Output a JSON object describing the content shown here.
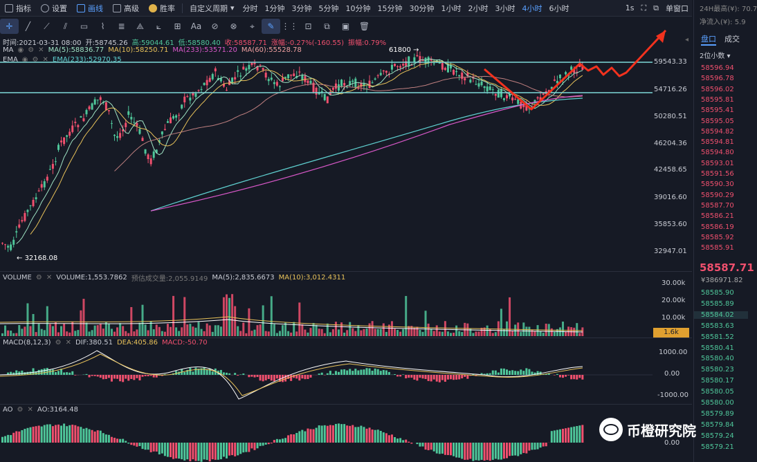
{
  "topbar": {
    "items": [
      {
        "label": "指标",
        "icon": "indicator-icon",
        "active": false
      },
      {
        "label": "设置",
        "icon": "settings-icon",
        "active": false
      },
      {
        "label": "画线",
        "icon": "draw-line-icon",
        "active": true
      },
      {
        "label": "高级",
        "icon": "advanced-icon",
        "active": false
      },
      {
        "label": "胜率",
        "icon": "win-rate-icon",
        "active": false
      }
    ],
    "custom_period": "自定义周期",
    "periods": [
      "分时",
      "1分钟",
      "3分钟",
      "5分钟",
      "10分钟",
      "15分钟",
      "30分钟",
      "1小时",
      "2小时",
      "3小时",
      "4小时",
      "6小时"
    ],
    "active_period": "4小时",
    "speed": "1s",
    "single_window": "单窗口"
  },
  "ohlc": {
    "time": "时间:2021-03-31 08:00",
    "open": "开:58745.26",
    "high": "高:59044.61",
    "low": "低:58580.40",
    "close": "收:58587.71",
    "change": "涨幅:-0.27%(-160.55)",
    "amplitude": "振幅:0.79%"
  },
  "ma_legend": {
    "name": "MA",
    "ma5": "MA(5):58836.77",
    "ma10": "MA(10):58250.71",
    "ma233": "MA(233):53571.20",
    "ma60": "MA(60):55528.78"
  },
  "ema_legend": {
    "name": "EMA",
    "ema233": "EMA(233):52970.35"
  },
  "price_labels": [
    "59543.33",
    "54716.26",
    "50280.51",
    "46204.36",
    "42458.65",
    "39016.60",
    "35853.60",
    "32947.01"
  ],
  "annotations": {
    "high": "61800",
    "low": "32168.08"
  },
  "volume": {
    "name": "VOLUME",
    "value": "VOLUME:1,553.7862",
    "estimate": "预估成交量:2,055.9149",
    "ma5": "MA(5):2,835.6673",
    "ma10": "MA(10):3,012.4311",
    "axis": [
      "30.00k",
      "20.00k",
      "10.00k"
    ],
    "current": "1.6k"
  },
  "macd": {
    "name": "MACD(8,12,3)",
    "dif": "DIF:380.51",
    "dea": "DEA:405.86",
    "macd": "MACD:-50.70",
    "axis": [
      "1000.00",
      "0.00",
      "-1000.00"
    ]
  },
  "ao": {
    "name": "AO",
    "value": "AO:3164.48",
    "axis": [
      "0.00"
    ]
  },
  "right_panel": {
    "high24": "24H最高(¥): 70.7",
    "netflow": "净流入(¥): 5.9",
    "tab_orderbook": "盘口",
    "tab_trades": "成交",
    "precision": "2位小数",
    "asks": [
      "58596.94",
      "58596.78",
      "58596.02",
      "58595.81",
      "58595.41",
      "58595.05",
      "58594.82",
      "58594.81",
      "58594.80",
      "58593.01",
      "58591.56",
      "58590.30",
      "58590.29",
      "58587.70",
      "58586.21",
      "58586.19",
      "58585.92",
      "58585.91"
    ],
    "last_price": "58587.71",
    "last_cny": "¥386971.82",
    "bids": [
      "58585.90",
      "58585.89",
      "58584.02",
      "58583.63",
      "58581.52",
      "58580.41",
      "58580.40",
      "58580.23",
      "58580.17",
      "58580.05",
      "58580.00",
      "58579.89",
      "58579.84",
      "58579.24",
      "58579.21"
    ]
  },
  "watermark": "币橙研究院",
  "colors": {
    "up": "#4fc69a",
    "down": "#f0506e",
    "accent": "#5aa0ff",
    "arrow": "#f2321e",
    "hline": "#7ed9d9"
  }
}
